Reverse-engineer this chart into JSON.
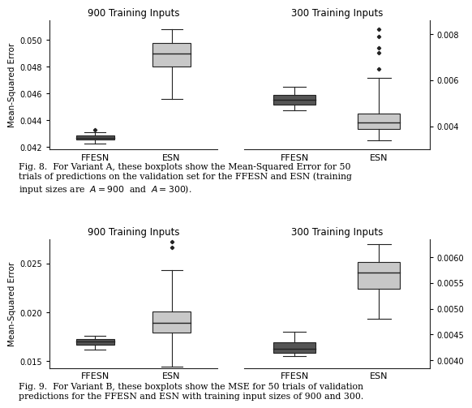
{
  "fig8": {
    "subplot1": {
      "title": "900 Training Inputs",
      "ylabel": "Mean-Squared Error",
      "xlabels": [
        "FFESN",
        "ESN"
      ],
      "ylim": [
        0.0418,
        0.0515
      ],
      "yticks": [
        0.042,
        0.044,
        0.046,
        0.048,
        0.05
      ],
      "ffesn": {
        "whislo": 0.04225,
        "q1": 0.04255,
        "med": 0.04268,
        "q3": 0.04285,
        "whishi": 0.0431,
        "fliers": [
          0.04325
        ]
      },
      "esn": {
        "whislo": 0.0456,
        "q1": 0.048,
        "med": 0.049,
        "q3": 0.0498,
        "whishi": 0.0508,
        "fliers": []
      },
      "ffesn_color": "#555555",
      "esn_color": "#c8c8c8"
    },
    "subplot2": {
      "title": "300 Training Inputs",
      "xlabels": [
        "FFESN",
        "ESN"
      ],
      "ylim": [
        0.003,
        0.0086
      ],
      "yticks": [
        0.004,
        0.006,
        0.008
      ],
      "ffesn": {
        "whislo": 0.00468,
        "q1": 0.00495,
        "med": 0.00515,
        "q3": 0.00535,
        "whishi": 0.0057,
        "fliers": []
      },
      "esn": {
        "whislo": 0.0034,
        "q1": 0.0039,
        "med": 0.00415,
        "q3": 0.00455,
        "whishi": 0.0061,
        "fliers": [
          0.0065,
          0.0072,
          0.0074,
          0.0079,
          0.0082
        ]
      },
      "ffesn_color": "#555555",
      "esn_color": "#c8c8c8"
    },
    "caption8_line1": "Fig. 8.  For Variant A, these boxplots show the Mean-Squared Error for 50",
    "caption8_line2": "trials of predictions on the validation set for the FFESN and ESN (training",
    "caption8_line3": "input sizes are  $A = 900$  and  $A = 300$)."
  },
  "fig9": {
    "subplot1": {
      "title": "900 Training Inputs",
      "ylabel": "Mean-Squared Error",
      "xlabels": [
        "FFESN",
        "ESN"
      ],
      "ylim": [
        0.0143,
        0.0275
      ],
      "yticks": [
        0.015,
        0.02,
        0.025
      ],
      "ffesn": {
        "whislo": 0.0162,
        "q1": 0.0167,
        "med": 0.01705,
        "q3": 0.0173,
        "whishi": 0.0176,
        "fliers": []
      },
      "esn": {
        "whislo": 0.01445,
        "q1": 0.0179,
        "med": 0.0189,
        "q3": 0.0201,
        "whishi": 0.0243,
        "fliers": [
          0.0266,
          0.0272
        ]
      },
      "ffesn_color": "#555555",
      "esn_color": "#c8c8c8"
    },
    "subplot2": {
      "title": "300 Training Inputs",
      "xlabels": [
        "FFESN",
        "ESN"
      ],
      "ylim": [
        0.00385,
        0.00635
      ],
      "yticks": [
        0.004,
        0.0045,
        0.005,
        0.0055,
        0.006
      ],
      "ffesn": {
        "whislo": 0.00408,
        "q1": 0.00415,
        "med": 0.00423,
        "q3": 0.00435,
        "whishi": 0.00455,
        "fliers": []
      },
      "esn": {
        "whislo": 0.0048,
        "q1": 0.00538,
        "med": 0.0057,
        "q3": 0.0059,
        "whishi": 0.00625,
        "fliers": []
      },
      "ffesn_color": "#555555",
      "esn_color": "#c8c8c8"
    },
    "caption9_line1": "Fig. 9.  For Variant B, these boxplots show the MSE for 50 trials of validation",
    "caption9_line2": "predictions for the FFESN and ESN with training input sizes of 900 and 300."
  }
}
